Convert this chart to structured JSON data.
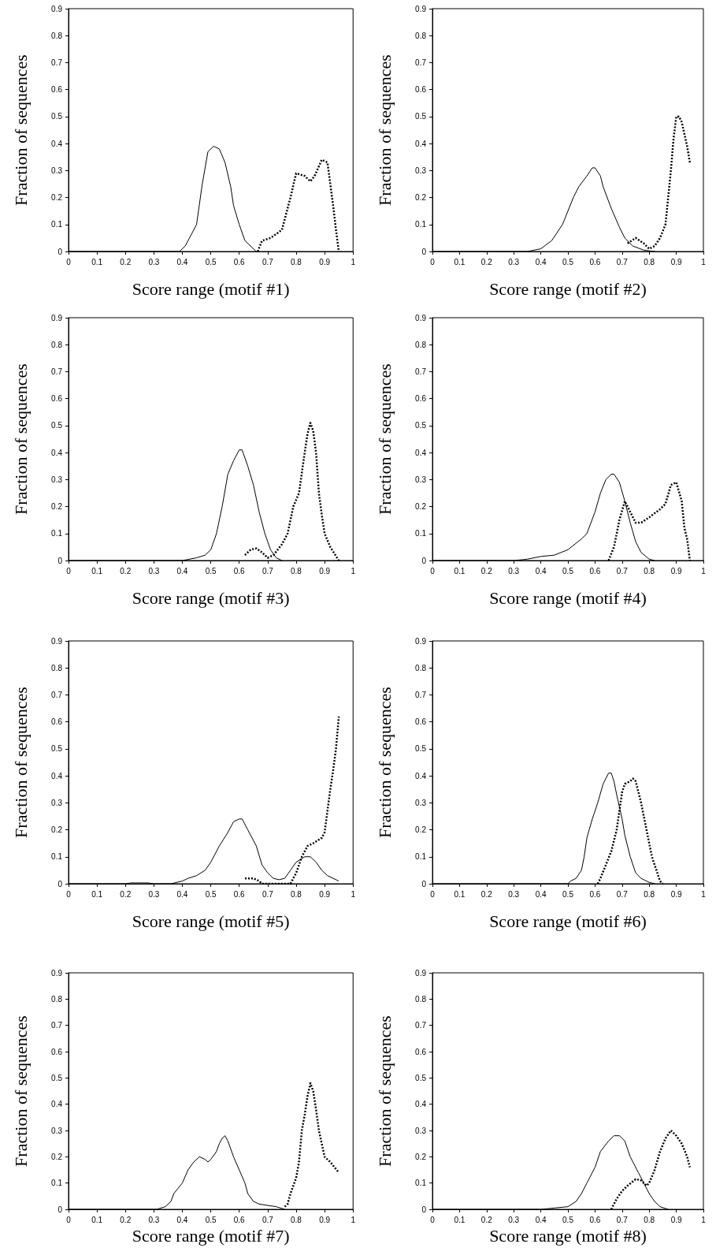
{
  "chart_data": [
    {
      "type": "line",
      "xlabel": "Score range (motif #1)",
      "ylabel": "Fraction of sequences",
      "xlim": [
        0,
        1
      ],
      "xticks": [
        0,
        0.1,
        0.2,
        0.3,
        0.4,
        0.5,
        0.6,
        0.7,
        0.8,
        0.9,
        1
      ],
      "ylim": [
        0,
        0.9
      ],
      "yticks": [
        0,
        0.1,
        0.2,
        0.3,
        0.4,
        0.5,
        0.6,
        0.7,
        0.8,
        0.9
      ],
      "grid": false,
      "marker": "none",
      "series": [
        {
          "color": "#000000",
          "line_style": "solid",
          "x": [
            0,
            0.39,
            0.41,
            0.45,
            0.47,
            0.49,
            0.51,
            0.53,
            0.55,
            0.57,
            0.58,
            0.6,
            0.62,
            0.66
          ],
          "values": [
            0,
            0,
            0.02,
            0.1,
            0.25,
            0.37,
            0.39,
            0.38,
            0.33,
            0.24,
            0.17,
            0.1,
            0.04,
            0
          ]
        },
        {
          "color": "#000000",
          "line_style": "dotted",
          "x": [
            0.665,
            0.68,
            0.71,
            0.75,
            0.78,
            0.8,
            0.83,
            0.85,
            0.865,
            0.89,
            0.91,
            0.93,
            0.94,
            0.95
          ],
          "values": [
            0,
            0.04,
            0.05,
            0.08,
            0.2,
            0.29,
            0.28,
            0.26,
            0.28,
            0.34,
            0.33,
            0.17,
            0.08,
            0
          ]
        }
      ]
    },
    {
      "type": "line",
      "xlabel": "Score range (motif #2)",
      "ylabel": "Fraction of sequences",
      "xlim": [
        0,
        1
      ],
      "xticks": [
        0,
        0.1,
        0.2,
        0.3,
        0.4,
        0.5,
        0.6,
        0.7,
        0.8,
        0.9,
        1
      ],
      "ylim": [
        0,
        0.9
      ],
      "yticks": [
        0,
        0.1,
        0.2,
        0.3,
        0.4,
        0.5,
        0.6,
        0.7,
        0.8,
        0.9
      ],
      "grid": false,
      "marker": "none",
      "series": [
        {
          "color": "#000000",
          "line_style": "solid",
          "x": [
            0,
            0.35,
            0.4,
            0.44,
            0.48,
            0.52,
            0.54,
            0.57,
            0.59,
            0.6,
            0.62,
            0.63,
            0.66,
            0.69,
            0.71,
            0.74,
            0.78,
            0.82
          ],
          "values": [
            0,
            0,
            0.01,
            0.04,
            0.1,
            0.2,
            0.24,
            0.28,
            0.31,
            0.31,
            0.28,
            0.24,
            0.16,
            0.09,
            0.05,
            0.02,
            0.005,
            0
          ]
        },
        {
          "color": "#000000",
          "line_style": "dotted",
          "x": [
            0.72,
            0.75,
            0.78,
            0.8,
            0.82,
            0.84,
            0.86,
            0.87,
            0.88,
            0.89,
            0.9,
            0.91,
            0.92,
            0.94,
            0.95
          ],
          "values": [
            0.03,
            0.05,
            0.03,
            0.01,
            0.02,
            0.05,
            0.1,
            0.2,
            0.3,
            0.42,
            0.5,
            0.5,
            0.48,
            0.39,
            0.33
          ]
        }
      ]
    },
    {
      "type": "line",
      "xlabel": "Score range (motif #3)",
      "ylabel": "Fraction of sequences",
      "xlim": [
        0,
        1
      ],
      "xticks": [
        0,
        0.1,
        0.2,
        0.3,
        0.4,
        0.5,
        0.6,
        0.7,
        0.8,
        0.9,
        1
      ],
      "ylim": [
        0,
        0.9
      ],
      "yticks": [
        0,
        0.1,
        0.2,
        0.3,
        0.4,
        0.5,
        0.6,
        0.7,
        0.8,
        0.9
      ],
      "grid": false,
      "marker": "none",
      "series": [
        {
          "color": "#000000",
          "line_style": "solid",
          "x": [
            0,
            0.4,
            0.45,
            0.48,
            0.5,
            0.52,
            0.54,
            0.56,
            0.58,
            0.6,
            0.61,
            0.63,
            0.65,
            0.67,
            0.69,
            0.71,
            0.73,
            0.75
          ],
          "values": [
            0,
            0,
            0.01,
            0.02,
            0.04,
            0.1,
            0.2,
            0.32,
            0.37,
            0.41,
            0.41,
            0.35,
            0.28,
            0.18,
            0.1,
            0.04,
            0.01,
            0
          ]
        },
        {
          "color": "#000000",
          "line_style": "dotted",
          "x": [
            0.62,
            0.64,
            0.66,
            0.68,
            0.7,
            0.72,
            0.75,
            0.77,
            0.79,
            0.81,
            0.83,
            0.84,
            0.85,
            0.86,
            0.87,
            0.88,
            0.89,
            0.9,
            0.92,
            0.95
          ],
          "values": [
            0.02,
            0.04,
            0.045,
            0.03,
            0.01,
            0.02,
            0.06,
            0.1,
            0.2,
            0.25,
            0.4,
            0.47,
            0.51,
            0.48,
            0.4,
            0.25,
            0.17,
            0.1,
            0.05,
            0
          ]
        }
      ]
    },
    {
      "type": "line",
      "xlabel": "Score range (motif #4)",
      "ylabel": "Fraction of sequences",
      "xlim": [
        0,
        1
      ],
      "xticks": [
        0,
        0.1,
        0.2,
        0.3,
        0.4,
        0.5,
        0.6,
        0.7,
        0.8,
        0.9,
        1
      ],
      "ylim": [
        0,
        0.9
      ],
      "yticks": [
        0,
        0.1,
        0.2,
        0.3,
        0.4,
        0.5,
        0.6,
        0.7,
        0.8,
        0.9
      ],
      "grid": false,
      "marker": "none",
      "series": [
        {
          "color": "#000000",
          "line_style": "solid",
          "x": [
            0,
            0.3,
            0.35,
            0.4,
            0.45,
            0.5,
            0.55,
            0.57,
            0.6,
            0.62,
            0.64,
            0.66,
            0.67,
            0.69,
            0.71,
            0.73,
            0.75,
            0.77,
            0.8,
            0.82
          ],
          "values": [
            0,
            0,
            0.005,
            0.015,
            0.02,
            0.04,
            0.08,
            0.1,
            0.18,
            0.25,
            0.3,
            0.32,
            0.32,
            0.29,
            0.22,
            0.14,
            0.07,
            0.03,
            0.005,
            0
          ]
        },
        {
          "color": "#000000",
          "line_style": "dotted",
          "x": [
            0.65,
            0.67,
            0.69,
            0.71,
            0.73,
            0.75,
            0.77,
            0.8,
            0.84,
            0.86,
            0.88,
            0.9,
            0.92,
            0.93,
            0.94,
            0.95
          ],
          "values": [
            0,
            0.05,
            0.15,
            0.22,
            0.18,
            0.14,
            0.14,
            0.16,
            0.19,
            0.21,
            0.28,
            0.29,
            0.22,
            0.12,
            0.08,
            0
          ]
        }
      ]
    },
    {
      "type": "line",
      "xlabel": "Score range (motif #5)",
      "ylabel": "Fraction of sequences",
      "xlim": [
        0,
        1
      ],
      "xticks": [
        0,
        0.1,
        0.2,
        0.3,
        0.4,
        0.5,
        0.6,
        0.7,
        0.8,
        0.9,
        1
      ],
      "ylim": [
        0,
        0.9
      ],
      "yticks": [
        0,
        0.1,
        0.2,
        0.3,
        0.4,
        0.5,
        0.6,
        0.7,
        0.8,
        0.9
      ],
      "grid": false,
      "marker": "none",
      "series": [
        {
          "color": "#000000",
          "line_style": "solid",
          "x": [
            0,
            0.2,
            0.22,
            0.28,
            0.3,
            0.36,
            0.4,
            0.42,
            0.45,
            0.48,
            0.5,
            0.53,
            0.56,
            0.58,
            0.6,
            0.61,
            0.63,
            0.66,
            0.68,
            0.7,
            0.72,
            0.74,
            0.76,
            0.78,
            0.8,
            0.83,
            0.85,
            0.87,
            0.89,
            0.91,
            0.93,
            0.95
          ],
          "values": [
            0,
            0,
            0.003,
            0.003,
            0,
            0,
            0.01,
            0.02,
            0.03,
            0.05,
            0.08,
            0.14,
            0.19,
            0.23,
            0.24,
            0.24,
            0.2,
            0.14,
            0.07,
            0.04,
            0.02,
            0.015,
            0.02,
            0.05,
            0.08,
            0.1,
            0.1,
            0.08,
            0.05,
            0.03,
            0.02,
            0.01
          ]
        },
        {
          "color": "#000000",
          "line_style": "dotted",
          "x": [
            0.62,
            0.65,
            0.67,
            0.68,
            0.78,
            0.8,
            0.82,
            0.84,
            0.86,
            0.89,
            0.9,
            0.91,
            0.92,
            0.93,
            0.94,
            0.95
          ],
          "values": [
            0.02,
            0.02,
            0.01,
            0,
            0,
            0.04,
            0.1,
            0.14,
            0.15,
            0.17,
            0.19,
            0.27,
            0.35,
            0.42,
            0.5,
            0.62
          ]
        }
      ]
    },
    {
      "type": "line",
      "xlabel": "Score range (motif #6)",
      "ylabel": "Fraction of sequences",
      "xlim": [
        0,
        1
      ],
      "xticks": [
        0,
        0.1,
        0.2,
        0.3,
        0.4,
        0.5,
        0.6,
        0.7,
        0.8,
        0.9,
        1
      ],
      "ylim": [
        0,
        0.9
      ],
      "yticks": [
        0,
        0.1,
        0.2,
        0.3,
        0.4,
        0.5,
        0.6,
        0.7,
        0.8,
        0.9
      ],
      "grid": false,
      "marker": "none",
      "series": [
        {
          "color": "#000000",
          "line_style": "solid",
          "x": [
            0,
            0.5,
            0.51,
            0.53,
            0.55,
            0.56,
            0.57,
            0.59,
            0.61,
            0.63,
            0.65,
            0.66,
            0.67,
            0.68,
            0.7,
            0.71,
            0.73,
            0.75,
            0.77,
            0.8,
            0.82
          ],
          "values": [
            0,
            0,
            0.01,
            0.02,
            0.05,
            0.1,
            0.17,
            0.24,
            0.3,
            0.37,
            0.41,
            0.41,
            0.38,
            0.33,
            0.24,
            0.18,
            0.1,
            0.04,
            0.02,
            0.005,
            0
          ]
        },
        {
          "color": "#000000",
          "line_style": "dotted",
          "x": [
            0.61,
            0.62,
            0.64,
            0.66,
            0.68,
            0.69,
            0.7,
            0.71,
            0.73,
            0.74,
            0.75,
            0.77,
            0.79,
            0.81,
            0.83,
            0.84,
            0.85
          ],
          "values": [
            0,
            0.02,
            0.07,
            0.12,
            0.2,
            0.27,
            0.34,
            0.37,
            0.38,
            0.39,
            0.38,
            0.3,
            0.2,
            0.1,
            0.04,
            0.01,
            0
          ]
        }
      ]
    },
    {
      "type": "line",
      "xlabel": "Score range (motif #7)",
      "ylabel": "Fraction of sequences",
      "xlim": [
        0,
        1
      ],
      "xticks": [
        0,
        0.1,
        0.2,
        0.3,
        0.4,
        0.5,
        0.6,
        0.7,
        0.8,
        0.9,
        1
      ],
      "ylim": [
        0,
        0.9
      ],
      "yticks": [
        0,
        0.1,
        0.2,
        0.3,
        0.4,
        0.5,
        0.6,
        0.7,
        0.8,
        0.9
      ],
      "grid": false,
      "marker": "none",
      "series": [
        {
          "color": "#000000",
          "line_style": "solid",
          "x": [
            0,
            0.31,
            0.34,
            0.36,
            0.37,
            0.4,
            0.42,
            0.44,
            0.46,
            0.48,
            0.49,
            0.5,
            0.52,
            0.53,
            0.54,
            0.55,
            0.56,
            0.58,
            0.6,
            0.62,
            0.63,
            0.65,
            0.67,
            0.7,
            0.73,
            0.76
          ],
          "values": [
            0,
            0,
            0.01,
            0.03,
            0.06,
            0.1,
            0.15,
            0.18,
            0.2,
            0.19,
            0.18,
            0.19,
            0.22,
            0.25,
            0.27,
            0.28,
            0.26,
            0.2,
            0.15,
            0.1,
            0.06,
            0.03,
            0.02,
            0.015,
            0.01,
            0
          ]
        },
        {
          "color": "#000000",
          "line_style": "dotted",
          "x": [
            0.76,
            0.77,
            0.78,
            0.8,
            0.81,
            0.82,
            0.83,
            0.84,
            0.85,
            0.86,
            0.87,
            0.88,
            0.89,
            0.9,
            0.92,
            0.95
          ],
          "values": [
            0.01,
            0.02,
            0.06,
            0.12,
            0.18,
            0.3,
            0.36,
            0.43,
            0.48,
            0.45,
            0.38,
            0.3,
            0.25,
            0.2,
            0.18,
            0.14
          ]
        }
      ]
    },
    {
      "type": "line",
      "xlabel": "Score range (motif #8)",
      "ylabel": "Fraction of sequences",
      "xlim": [
        0,
        1
      ],
      "xticks": [
        0,
        0.1,
        0.2,
        0.3,
        0.4,
        0.5,
        0.6,
        0.7,
        0.8,
        0.9,
        1
      ],
      "ylim": [
        0,
        0.9
      ],
      "yticks": [
        0,
        0.1,
        0.2,
        0.3,
        0.4,
        0.5,
        0.6,
        0.7,
        0.8,
        0.9
      ],
      "grid": false,
      "marker": "none",
      "series": [
        {
          "color": "#000000",
          "line_style": "solid",
          "x": [
            0,
            0.4,
            0.45,
            0.5,
            0.53,
            0.55,
            0.57,
            0.6,
            0.62,
            0.65,
            0.67,
            0.69,
            0.71,
            0.73,
            0.76,
            0.78,
            0.8,
            0.82,
            0.84,
            0.87
          ],
          "values": [
            0,
            0,
            0.005,
            0.01,
            0.03,
            0.06,
            0.1,
            0.16,
            0.22,
            0.26,
            0.28,
            0.28,
            0.26,
            0.2,
            0.14,
            0.1,
            0.06,
            0.03,
            0.01,
            0
          ]
        },
        {
          "color": "#000000",
          "line_style": "dotted",
          "x": [
            0.66,
            0.68,
            0.7,
            0.72,
            0.75,
            0.77,
            0.79,
            0.8,
            0.82,
            0.84,
            0.86,
            0.88,
            0.9,
            0.92,
            0.94,
            0.95
          ],
          "values": [
            0,
            0.04,
            0.07,
            0.09,
            0.115,
            0.11,
            0.09,
            0.1,
            0.15,
            0.22,
            0.27,
            0.3,
            0.28,
            0.25,
            0.2,
            0.16
          ]
        }
      ]
    }
  ]
}
